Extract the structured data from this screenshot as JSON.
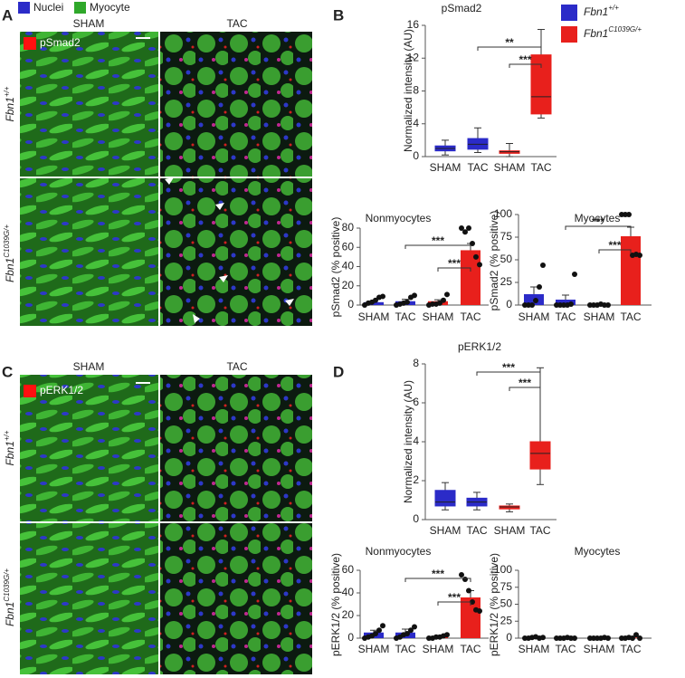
{
  "panels": [
    {
      "label": "A",
      "legend": [
        "Nuclei",
        "Myocyte"
      ],
      "columns": [
        "SHAM",
        "TAC"
      ],
      "stain": "pSmad2",
      "rows": [
        {
          "gene": "Fbn1",
          "genotype": "+/+"
        },
        {
          "gene": "Fbn1",
          "genotype": "C1039G/+"
        }
      ]
    },
    {
      "label": "B"
    },
    {
      "label": "C",
      "columns": [
        "SHAM",
        "TAC"
      ],
      "stain": "pERK1/2",
      "rows": [
        {
          "gene": "Fbn1",
          "genotype": "+/+"
        },
        {
          "gene": "Fbn1",
          "genotype": "C1039G/+"
        }
      ]
    },
    {
      "label": "D"
    }
  ],
  "chart_data": [
    {
      "type": "box",
      "title": "pSmad2",
      "ylabel": "Normalized intensity (AU)",
      "categories": [
        "SHAM",
        "TAC",
        "SHAM",
        "TAC"
      ],
      "colors": [
        "#2b2bc8",
        "#2b2bc8",
        "#e8201c",
        "#e8201c"
      ],
      "min": [
        0.2,
        0.5,
        0,
        4.7
      ],
      "q1": [
        0.7,
        0.9,
        0.4,
        5.2
      ],
      "median": [
        1.0,
        1.5,
        0.6,
        7.3
      ],
      "q3": [
        1.3,
        2.2,
        0.7,
        12.4
      ],
      "max": [
        2.0,
        3.5,
        1.6,
        15.5
      ],
      "ylim": [
        0,
        16
      ],
      "yticks": [
        0,
        4,
        8,
        12,
        16
      ],
      "annotations": [
        "**",
        "***"
      ],
      "legend": [
        {
          "gene": "Fbn1",
          "genotype": "+/+",
          "color": "#2b2bc8"
        },
        {
          "gene": "Fbn1",
          "genotype": "C1039G/+",
          "color": "#e8201c"
        }
      ]
    },
    {
      "type": "bar",
      "title": "Nonmyocytes",
      "ylabel": "pSmad2 (% positive)",
      "categories": [
        "SHAM",
        "TAC",
        "SHAM",
        "TAC"
      ],
      "colors": [
        "#2b2bc8",
        "#2b2bc8",
        "#e8201c",
        "#e8201c"
      ],
      "values": [
        3,
        4,
        4,
        57
      ],
      "errors": [
        1,
        2,
        1.5,
        7
      ],
      "points": [
        [
          0,
          2,
          3,
          5,
          8,
          9
        ],
        [
          0,
          1,
          2,
          3,
          8,
          10
        ],
        [
          0,
          1,
          1,
          2,
          5,
          11
        ],
        [
          80,
          76,
          80,
          64,
          50,
          42
        ]
      ],
      "ylim": [
        0,
        80
      ],
      "yticks": [
        0,
        20,
        40,
        60,
        80
      ],
      "annotations": [
        "***",
        "***"
      ]
    },
    {
      "type": "bar",
      "title": "Myocytes",
      "ylabel": "pSmad2 (% positive)",
      "categories": [
        "SHAM",
        "TAC",
        "SHAM",
        "TAC"
      ],
      "colors": [
        "#2b2bc8",
        "#2b2bc8",
        "#e8201c",
        "#e8201c"
      ],
      "values": [
        12,
        6,
        0.3,
        76
      ],
      "errors": [
        8,
        5,
        0.5,
        10
      ],
      "points": [
        [
          0,
          0,
          0,
          5,
          20,
          44
        ],
        [
          0,
          0,
          0,
          0,
          1,
          34
        ],
        [
          0,
          0,
          0,
          1,
          0,
          0
        ],
        [
          100,
          100,
          100,
          55,
          56,
          55
        ]
      ],
      "ylim": [
        0,
        100
      ],
      "yticks": [
        0,
        25,
        50,
        75,
        100
      ],
      "annotations": [
        "***",
        "***"
      ]
    },
    {
      "type": "box",
      "title": "pERK1/2",
      "ylabel": "Normalized intensity (AU)",
      "categories": [
        "SHAM",
        "TAC",
        "SHAM",
        "TAC"
      ],
      "colors": [
        "#2b2bc8",
        "#2b2bc8",
        "#e8201c",
        "#e8201c"
      ],
      "min": [
        0.5,
        0.5,
        0.4,
        1.8
      ],
      "q1": [
        0.7,
        0.7,
        0.55,
        2.6
      ],
      "median": [
        0.9,
        0.9,
        0.65,
        3.4
      ],
      "q3": [
        1.5,
        1.1,
        0.7,
        4.0
      ],
      "max": [
        1.9,
        1.4,
        0.8,
        7.8
      ],
      "ylim": [
        0,
        8
      ],
      "yticks": [
        0,
        2,
        4,
        6,
        8
      ],
      "annotations": [
        "***",
        "***"
      ]
    },
    {
      "type": "bar",
      "title": "Nonmyocytes",
      "ylabel": "pERK1/2 (% positive)",
      "categories": [
        "SHAM",
        "TAC",
        "SHAM",
        "TAC"
      ],
      "colors": [
        "#2b2bc8",
        "#2b2bc8",
        "#e8201c",
        "#e8201c"
      ],
      "values": [
        5,
        5,
        1,
        36
      ],
      "errors": [
        2,
        3,
        0.5,
        6
      ],
      "points": [
        [
          0,
          1,
          2,
          4,
          7,
          11
        ],
        [
          0,
          1,
          3,
          4,
          7,
          10
        ],
        [
          0,
          0,
          1,
          1,
          2,
          3
        ],
        [
          56,
          52,
          42,
          32,
          25,
          24
        ]
      ],
      "ylim": [
        0,
        60
      ],
      "yticks": [
        0,
        20,
        40,
        60
      ],
      "annotations": [
        "***",
        "***"
      ]
    },
    {
      "type": "bar",
      "title": "Myocytes",
      "ylabel": "pERK1/2 (% positive)",
      "categories": [
        "SHAM",
        "TAC",
        "SHAM",
        "TAC"
      ],
      "colors": [
        "#2b2bc8",
        "#2b2bc8",
        "#e8201c",
        "#e8201c"
      ],
      "values": [
        1,
        0.3,
        0.3,
        1
      ],
      "errors": [
        0.5,
        0.2,
        0.2,
        0.8
      ],
      "points": [
        [
          0,
          0,
          1,
          2,
          0,
          1
        ],
        [
          0,
          0,
          0,
          1,
          0,
          0
        ],
        [
          0,
          0,
          0,
          0,
          1,
          0
        ],
        [
          0,
          0,
          1,
          0,
          5,
          0
        ]
      ],
      "ylim": [
        0,
        100
      ],
      "yticks": [
        0,
        25,
        50,
        75,
        100
      ]
    }
  ]
}
